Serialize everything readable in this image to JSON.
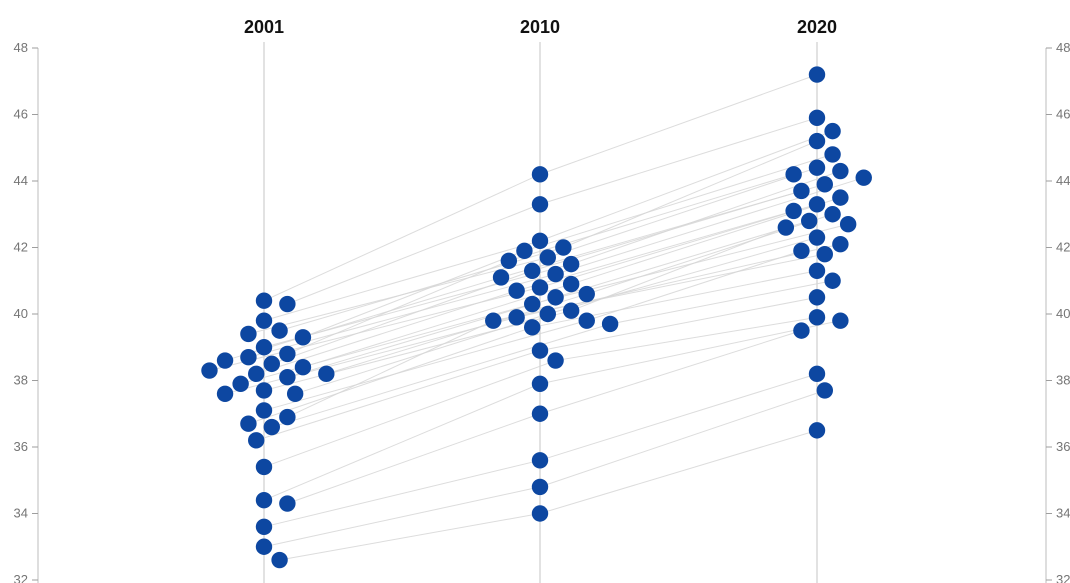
{
  "chart_data": {
    "type": "scatter",
    "title": "",
    "ylim": [
      32,
      48
    ],
    "yticks": [
      "32",
      "34",
      "36",
      "38",
      "40",
      "42",
      "44",
      "46",
      "48"
    ],
    "grid": false,
    "categories": [
      "2001",
      "2010",
      "2020"
    ],
    "colors": {
      "dot": "#0d47a1",
      "link": "#d6d6d6",
      "axis": "#bdbdbd"
    },
    "series": [
      {
        "values": [
          40.4,
          44.2,
          47.2
        ]
      },
      {
        "values": [
          40.3,
          43.3,
          45.9
        ]
      },
      {
        "values": [
          39.8,
          42.2,
          45.5
        ]
      },
      {
        "values": [
          39.5,
          42.0,
          45.2
        ]
      },
      {
        "values": [
          39.3,
          41.9,
          44.8
        ]
      },
      {
        "values": [
          39.4,
          41.7,
          44.4
        ]
      },
      {
        "values": [
          39.0,
          41.5,
          44.3
        ]
      },
      {
        "values": [
          38.8,
          41.6,
          44.2
        ]
      },
      {
        "values": [
          38.7,
          41.2,
          44.1
        ]
      },
      {
        "values": [
          38.6,
          41.1,
          43.9
        ]
      },
      {
        "values": [
          38.5,
          41.3,
          43.7
        ]
      },
      {
        "values": [
          38.4,
          40.9,
          43.5
        ]
      },
      {
        "values": [
          38.3,
          40.8,
          43.3
        ]
      },
      {
        "values": [
          38.2,
          40.7,
          43.1
        ]
      },
      {
        "values": [
          38.2,
          40.6,
          43.0
        ]
      },
      {
        "values": [
          38.1,
          40.5,
          42.8
        ]
      },
      {
        "values": [
          37.9,
          40.3,
          42.7
        ]
      },
      {
        "values": [
          37.7,
          40.1,
          42.6
        ]
      },
      {
        "values": [
          37.6,
          40.0,
          42.3
        ]
      },
      {
        "values": [
          37.6,
          39.9,
          42.1
        ]
      },
      {
        "values": [
          37.1,
          39.8,
          41.9
        ]
      },
      {
        "values": [
          36.9,
          39.8,
          41.8
        ]
      },
      {
        "values": [
          36.7,
          39.6,
          41.3
        ]
      },
      {
        "values": [
          36.6,
          39.7,
          41.0
        ]
      },
      {
        "values": [
          36.2,
          38.9,
          40.5
        ]
      },
      {
        "values": [
          35.4,
          38.6,
          39.9
        ]
      },
      {
        "values": [
          34.4,
          37.9,
          39.8
        ]
      },
      {
        "values": [
          34.3,
          37.0,
          39.5
        ]
      },
      {
        "values": [
          33.6,
          35.6,
          38.2
        ]
      },
      {
        "values": [
          33.0,
          34.8,
          37.7
        ]
      },
      {
        "values": [
          32.6,
          34.0,
          36.5
        ]
      }
    ]
  }
}
